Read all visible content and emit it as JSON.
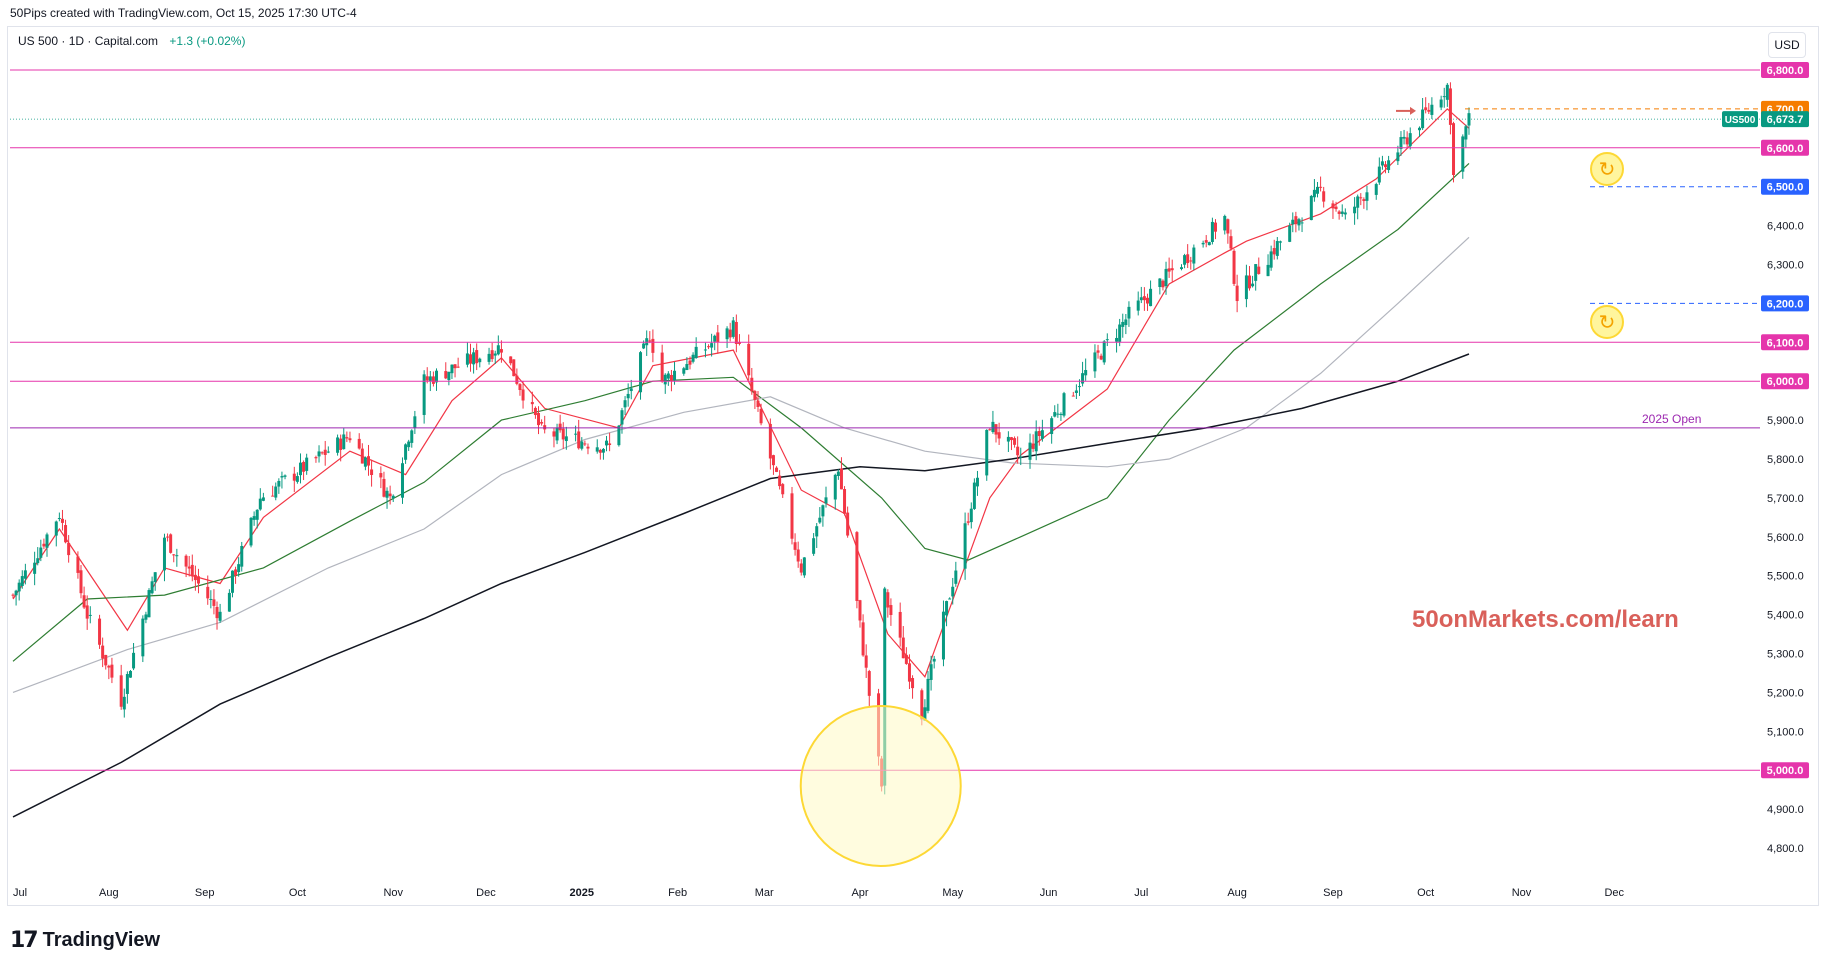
{
  "caption": "50Pips created with TradingView.com, Oct 15, 2025 17:30 UTC-4",
  "symbol": {
    "name": "US 500 · 1D · Capital.com",
    "change": "+1.3 (+0.02%)"
  },
  "currency_button": "USD",
  "watermark": "50onMarkets.com/learn",
  "brand": {
    "name": "TradingView",
    "mark": "17"
  },
  "icons": [
    "refresh-icon",
    "refresh-icon",
    "arrow-right-icon",
    "tradingview-logo-icon"
  ],
  "colors": {
    "up": "#089981",
    "down": "#f23645",
    "level": "#e535ab",
    "open": "#9c27b0",
    "orange": "#f57c00",
    "blue": "#2962ff",
    "ma_fast": "#f23645",
    "ma_mid": "#2e7d32",
    "ma_slow": "#b2b5be",
    "ma_long": "#131722"
  },
  "chart_data": {
    "type": "candlestick",
    "title": "US 500 · 1D · Capital.com",
    "ylabel": "USD",
    "ylim": [
      4750,
      6850
    ],
    "x_tick_labels": [
      "Jul",
      "Aug",
      "Sep",
      "Oct",
      "Nov",
      "Dec",
      "2025",
      "Feb",
      "Mar",
      "Apr",
      "May",
      "Jun",
      "Jul",
      "Aug",
      "Sep",
      "Oct",
      "Nov",
      "Dec"
    ],
    "y_tick_labels": [
      "4,800.0",
      "4,900.0",
      "5,000.0",
      "5,100.0",
      "5,200.0",
      "5,300.0",
      "5,400.0",
      "5,500.0",
      "5,600.0",
      "5,700.0",
      "5,800.0",
      "5,900.0",
      "6,000.0",
      "6,100.0",
      "6,200.0",
      "6,300.0",
      "6,400.0",
      "6,500.0",
      "6,600.0",
      "6,700.0",
      "6,800.0"
    ],
    "close_path": [
      [
        "2024-07-01",
        5450
      ],
      [
        "2024-07-16",
        5660
      ],
      [
        "2024-07-25",
        5400
      ],
      [
        "2024-08-05",
        5180
      ],
      [
        "2024-08-19",
        5600
      ],
      [
        "2024-09-06",
        5400
      ],
      [
        "2024-09-19",
        5700
      ],
      [
        "2024-10-18",
        5860
      ],
      [
        "2024-10-31",
        5700
      ],
      [
        "2024-11-11",
        6000
      ],
      [
        "2024-12-06",
        6090
      ],
      [
        "2024-12-19",
        5870
      ],
      [
        "2025-01-10",
        5830
      ],
      [
        "2025-01-23",
        6120
      ],
      [
        "2025-01-27",
        6000
      ],
      [
        "2025-02-19",
        6140
      ],
      [
        "2025-03-13",
        5520
      ],
      [
        "2025-03-25",
        5780
      ],
      [
        "2025-04-08",
        4960
      ],
      [
        "2025-04-09",
        5450
      ],
      [
        "2025-04-21",
        5150
      ],
      [
        "2025-05-13",
        5890
      ],
      [
        "2025-05-23",
        5800
      ],
      [
        "2025-06-27",
        6170
      ],
      [
        "2025-07-28",
        6420
      ],
      [
        "2025-08-01",
        6220
      ],
      [
        "2025-08-28",
        6490
      ],
      [
        "2025-09-05",
        6420
      ],
      [
        "2025-10-08",
        6760
      ],
      [
        "2025-10-10",
        6550
      ],
      [
        "2025-10-15",
        6673.7
      ]
    ],
    "series": [
      {
        "name": "EMA fast",
        "values": [
          [
            "2024-07-01",
            5440
          ],
          [
            "2024-07-16",
            5620
          ],
          [
            "2024-08-07",
            5360
          ],
          [
            "2024-08-19",
            5520
          ],
          [
            "2024-09-06",
            5480
          ],
          [
            "2024-09-20",
            5650
          ],
          [
            "2024-10-18",
            5820
          ],
          [
            "2024-11-05",
            5760
          ],
          [
            "2024-11-20",
            5950
          ],
          [
            "2024-12-06",
            6060
          ],
          [
            "2024-12-20",
            5930
          ],
          [
            "2025-01-13",
            5880
          ],
          [
            "2025-01-24",
            6040
          ],
          [
            "2025-02-19",
            6080
          ],
          [
            "2025-03-13",
            5720
          ],
          [
            "2025-03-27",
            5660
          ],
          [
            "2025-04-10",
            5350
          ],
          [
            "2025-04-22",
            5240
          ],
          [
            "2025-05-13",
            5700
          ],
          [
            "2025-05-23",
            5810
          ],
          [
            "2025-06-20",
            5980
          ],
          [
            "2025-07-10",
            6250
          ],
          [
            "2025-07-28",
            6330
          ],
          [
            "2025-08-04",
            6360
          ],
          [
            "2025-08-28",
            6430
          ],
          [
            "2025-09-15",
            6520
          ],
          [
            "2025-10-08",
            6700
          ],
          [
            "2025-10-15",
            6650
          ]
        ]
      },
      {
        "name": "EMA mid",
        "values": [
          [
            "2024-07-01",
            5280
          ],
          [
            "2024-07-25",
            5440
          ],
          [
            "2024-08-19",
            5450
          ],
          [
            "2024-09-20",
            5520
          ],
          [
            "2024-10-18",
            5640
          ],
          [
            "2024-11-11",
            5740
          ],
          [
            "2024-12-06",
            5900
          ],
          [
            "2025-01-02",
            5950
          ],
          [
            "2025-01-24",
            6000
          ],
          [
            "2025-02-19",
            6010
          ],
          [
            "2025-03-13",
            5880
          ],
          [
            "2025-04-08",
            5700
          ],
          [
            "2025-04-22",
            5570
          ],
          [
            "2025-05-06",
            5540
          ],
          [
            "2025-05-23",
            5600
          ],
          [
            "2025-06-20",
            5700
          ],
          [
            "2025-07-10",
            5900
          ],
          [
            "2025-07-31",
            6080
          ],
          [
            "2025-08-28",
            6250
          ],
          [
            "2025-09-22",
            6390
          ],
          [
            "2025-10-15",
            6560
          ]
        ]
      },
      {
        "name": "EMA slow",
        "values": [
          [
            "2024-07-01",
            5200
          ],
          [
            "2024-08-07",
            5310
          ],
          [
            "2024-09-06",
            5380
          ],
          [
            "2024-10-11",
            5520
          ],
          [
            "2024-11-11",
            5620
          ],
          [
            "2024-12-06",
            5760
          ],
          [
            "2025-01-02",
            5850
          ],
          [
            "2025-02-03",
            5920
          ],
          [
            "2025-03-03",
            5960
          ],
          [
            "2025-03-27",
            5880
          ],
          [
            "2025-04-22",
            5820
          ],
          [
            "2025-05-20",
            5790
          ],
          [
            "2025-06-20",
            5780
          ],
          [
            "2025-07-10",
            5800
          ],
          [
            "2025-08-04",
            5880
          ],
          [
            "2025-08-28",
            6020
          ],
          [
            "2025-09-22",
            6200
          ],
          [
            "2025-10-15",
            6370
          ]
        ]
      },
      {
        "name": "SMA long",
        "values": [
          [
            "2024-07-01",
            4880
          ],
          [
            "2024-08-05",
            5020
          ],
          [
            "2024-09-06",
            5170
          ],
          [
            "2024-10-11",
            5290
          ],
          [
            "2024-11-11",
            5390
          ],
          [
            "2024-12-06",
            5480
          ],
          [
            "2025-01-02",
            5560
          ],
          [
            "2025-02-03",
            5660
          ],
          [
            "2025-03-03",
            5750
          ],
          [
            "2025-04-01",
            5780
          ],
          [
            "2025-04-22",
            5770
          ],
          [
            "2025-05-20",
            5800
          ],
          [
            "2025-06-20",
            5840
          ],
          [
            "2025-07-22",
            5880
          ],
          [
            "2025-08-22",
            5930
          ],
          [
            "2025-09-22",
            6000
          ],
          [
            "2025-10-15",
            6070
          ]
        ]
      }
    ],
    "horizontal_levels": [
      {
        "price": 6800,
        "label": "6,800.0",
        "color": "#e535ab",
        "style": "solid"
      },
      {
        "price": 6700,
        "label": "6,700.0",
        "color": "#f57c00",
        "style": "dashed"
      },
      {
        "price": 6600,
        "label": "6,600.0",
        "color": "#e535ab",
        "style": "solid"
      },
      {
        "price": 6500,
        "label": "6,500.0",
        "color": "#2962ff",
        "style": "dashed"
      },
      {
        "price": 6200,
        "label": "6,200.0",
        "color": "#2962ff",
        "style": "dashed"
      },
      {
        "price": 6100,
        "label": "6,100.0",
        "color": "#e535ab",
        "style": "solid"
      },
      {
        "price": 6000,
        "label": "6,000.0",
        "color": "#e535ab",
        "style": "solid"
      },
      {
        "price": 5880,
        "label": "2025 Open",
        "color": "#9c27b0",
        "style": "solid"
      },
      {
        "price": 5000,
        "label": "5,000.0",
        "color": "#e535ab",
        "style": "solid"
      }
    ],
    "last_price": {
      "symbol": "US500",
      "label": "6,673.7",
      "value": 6673.7,
      "color": "#089981"
    },
    "annotations": [
      {
        "type": "circle",
        "date": "2025-04-09",
        "price": 4980
      }
    ],
    "grid": false
  }
}
